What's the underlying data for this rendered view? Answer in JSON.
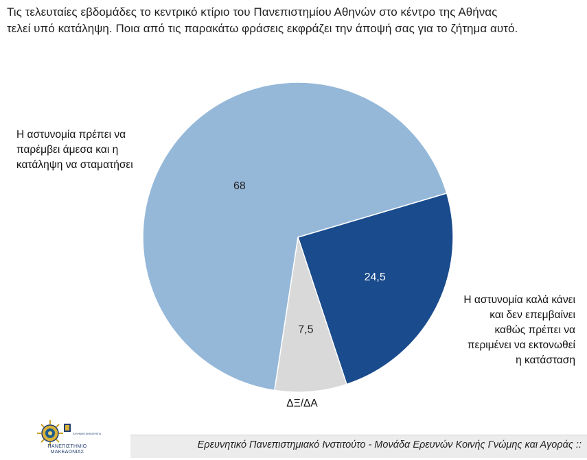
{
  "question": {
    "line1": "Τις τελευταίες εβδομάδες το κεντρικό κτίριο του Πανεπιστημίου Αθηνών στο κέντρο της Αθήνας",
    "line2": "τελεί υπό κατάληψη. Ποια από τις παρακάτω φράσεις εκφράζει την άποψή σας για το ζήτημα αυτό."
  },
  "chart_data": {
    "type": "pie",
    "title": "",
    "slices": [
      {
        "label": "Η αστυνομία πρέπει να παρέμβει άμεσα και η κατάληψη να σταματήσει",
        "value": 68,
        "value_label": "68",
        "color": "#95b8d9"
      },
      {
        "label": "Η αστυνομία καλά κάνει και δεν επεμβαίνει καθώς πρέπει να περιμένει να εκτονωθεί η κατάσταση",
        "value": 24.5,
        "value_label": "24,5",
        "color": "#1a4b8c"
      },
      {
        "label": "ΔΞ/ΔΑ",
        "value": 7.5,
        "value_label": "7,5",
        "color": "#d9d9d9"
      }
    ]
  },
  "labels": {
    "left": [
      "Η αστυνομία πρέπει να",
      "παρέμβει άμεσα και η",
      "κατάληψη να σταματήσει"
    ],
    "right": [
      "Η αστυνομία καλά κάνει",
      "και δεν επεμβαίνει",
      "καθώς πρέπει να",
      "περιμένει να εκτονωθεί",
      "η κατάσταση"
    ],
    "bottom": "ΔΞ/ΔΑ"
  },
  "footer": {
    "text": "Ερευνητικό Πανεπιστημιακό Ινστιτούτο - Μονάδα Ερευνών Κοινής Γνώμης και Αγοράς ::",
    "logo_line1": "ΠΑΝΕΠΙΣΤΗΜΙΟ",
    "logo_line2": "ΜΑΚΕΔΟΝΙΑΣ",
    "logo_side": "ΕΛΛΗΝΙΚΗ ΔΗΜΟΚΡΑΤΙΑ"
  }
}
